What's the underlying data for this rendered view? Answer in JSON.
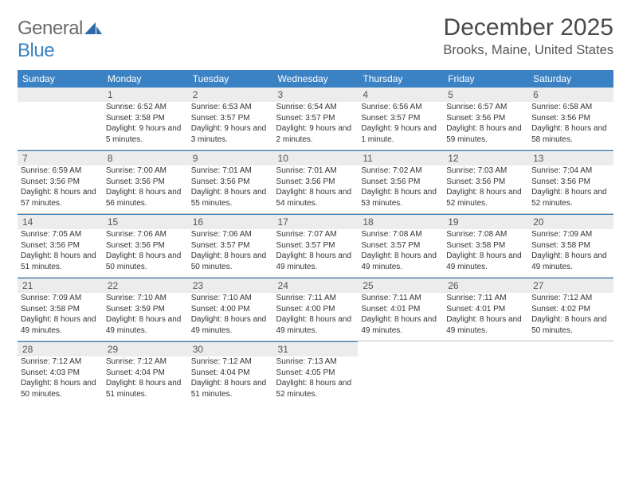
{
  "brand": {
    "text1": "General",
    "text2": "Blue"
  },
  "title": "December 2025",
  "location": "Brooks, Maine, United States",
  "colors": {
    "header_bg": "#3b82c4",
    "header_text": "#ffffff",
    "daynum_bg": "#ececec",
    "border_top": "#3b82c4",
    "row_divider": "#c0c0c0",
    "body_text": "#333333",
    "title_text": "#4a4a4a"
  },
  "day_names": [
    "Sunday",
    "Monday",
    "Tuesday",
    "Wednesday",
    "Thursday",
    "Friday",
    "Saturday"
  ],
  "weeks": [
    [
      null,
      {
        "n": "1",
        "sr": "Sunrise: 6:52 AM",
        "ss": "Sunset: 3:58 PM",
        "dl": "Daylight: 9 hours and 5 minutes."
      },
      {
        "n": "2",
        "sr": "Sunrise: 6:53 AM",
        "ss": "Sunset: 3:57 PM",
        "dl": "Daylight: 9 hours and 3 minutes."
      },
      {
        "n": "3",
        "sr": "Sunrise: 6:54 AM",
        "ss": "Sunset: 3:57 PM",
        "dl": "Daylight: 9 hours and 2 minutes."
      },
      {
        "n": "4",
        "sr": "Sunrise: 6:56 AM",
        "ss": "Sunset: 3:57 PM",
        "dl": "Daylight: 9 hours and 1 minute."
      },
      {
        "n": "5",
        "sr": "Sunrise: 6:57 AM",
        "ss": "Sunset: 3:56 PM",
        "dl": "Daylight: 8 hours and 59 minutes."
      },
      {
        "n": "6",
        "sr": "Sunrise: 6:58 AM",
        "ss": "Sunset: 3:56 PM",
        "dl": "Daylight: 8 hours and 58 minutes."
      }
    ],
    [
      {
        "n": "7",
        "sr": "Sunrise: 6:59 AM",
        "ss": "Sunset: 3:56 PM",
        "dl": "Daylight: 8 hours and 57 minutes."
      },
      {
        "n": "8",
        "sr": "Sunrise: 7:00 AM",
        "ss": "Sunset: 3:56 PM",
        "dl": "Daylight: 8 hours and 56 minutes."
      },
      {
        "n": "9",
        "sr": "Sunrise: 7:01 AM",
        "ss": "Sunset: 3:56 PM",
        "dl": "Daylight: 8 hours and 55 minutes."
      },
      {
        "n": "10",
        "sr": "Sunrise: 7:01 AM",
        "ss": "Sunset: 3:56 PM",
        "dl": "Daylight: 8 hours and 54 minutes."
      },
      {
        "n": "11",
        "sr": "Sunrise: 7:02 AM",
        "ss": "Sunset: 3:56 PM",
        "dl": "Daylight: 8 hours and 53 minutes."
      },
      {
        "n": "12",
        "sr": "Sunrise: 7:03 AM",
        "ss": "Sunset: 3:56 PM",
        "dl": "Daylight: 8 hours and 52 minutes."
      },
      {
        "n": "13",
        "sr": "Sunrise: 7:04 AM",
        "ss": "Sunset: 3:56 PM",
        "dl": "Daylight: 8 hours and 52 minutes."
      }
    ],
    [
      {
        "n": "14",
        "sr": "Sunrise: 7:05 AM",
        "ss": "Sunset: 3:56 PM",
        "dl": "Daylight: 8 hours and 51 minutes."
      },
      {
        "n": "15",
        "sr": "Sunrise: 7:06 AM",
        "ss": "Sunset: 3:56 PM",
        "dl": "Daylight: 8 hours and 50 minutes."
      },
      {
        "n": "16",
        "sr": "Sunrise: 7:06 AM",
        "ss": "Sunset: 3:57 PM",
        "dl": "Daylight: 8 hours and 50 minutes."
      },
      {
        "n": "17",
        "sr": "Sunrise: 7:07 AM",
        "ss": "Sunset: 3:57 PM",
        "dl": "Daylight: 8 hours and 49 minutes."
      },
      {
        "n": "18",
        "sr": "Sunrise: 7:08 AM",
        "ss": "Sunset: 3:57 PM",
        "dl": "Daylight: 8 hours and 49 minutes."
      },
      {
        "n": "19",
        "sr": "Sunrise: 7:08 AM",
        "ss": "Sunset: 3:58 PM",
        "dl": "Daylight: 8 hours and 49 minutes."
      },
      {
        "n": "20",
        "sr": "Sunrise: 7:09 AM",
        "ss": "Sunset: 3:58 PM",
        "dl": "Daylight: 8 hours and 49 minutes."
      }
    ],
    [
      {
        "n": "21",
        "sr": "Sunrise: 7:09 AM",
        "ss": "Sunset: 3:58 PM",
        "dl": "Daylight: 8 hours and 49 minutes."
      },
      {
        "n": "22",
        "sr": "Sunrise: 7:10 AM",
        "ss": "Sunset: 3:59 PM",
        "dl": "Daylight: 8 hours and 49 minutes."
      },
      {
        "n": "23",
        "sr": "Sunrise: 7:10 AM",
        "ss": "Sunset: 4:00 PM",
        "dl": "Daylight: 8 hours and 49 minutes."
      },
      {
        "n": "24",
        "sr": "Sunrise: 7:11 AM",
        "ss": "Sunset: 4:00 PM",
        "dl": "Daylight: 8 hours and 49 minutes."
      },
      {
        "n": "25",
        "sr": "Sunrise: 7:11 AM",
        "ss": "Sunset: 4:01 PM",
        "dl": "Daylight: 8 hours and 49 minutes."
      },
      {
        "n": "26",
        "sr": "Sunrise: 7:11 AM",
        "ss": "Sunset: 4:01 PM",
        "dl": "Daylight: 8 hours and 49 minutes."
      },
      {
        "n": "27",
        "sr": "Sunrise: 7:12 AM",
        "ss": "Sunset: 4:02 PM",
        "dl": "Daylight: 8 hours and 50 minutes."
      }
    ],
    [
      {
        "n": "28",
        "sr": "Sunrise: 7:12 AM",
        "ss": "Sunset: 4:03 PM",
        "dl": "Daylight: 8 hours and 50 minutes."
      },
      {
        "n": "29",
        "sr": "Sunrise: 7:12 AM",
        "ss": "Sunset: 4:04 PM",
        "dl": "Daylight: 8 hours and 51 minutes."
      },
      {
        "n": "30",
        "sr": "Sunrise: 7:12 AM",
        "ss": "Sunset: 4:04 PM",
        "dl": "Daylight: 8 hours and 51 minutes."
      },
      {
        "n": "31",
        "sr": "Sunrise: 7:13 AM",
        "ss": "Sunset: 4:05 PM",
        "dl": "Daylight: 8 hours and 52 minutes."
      },
      null,
      null,
      null
    ]
  ]
}
